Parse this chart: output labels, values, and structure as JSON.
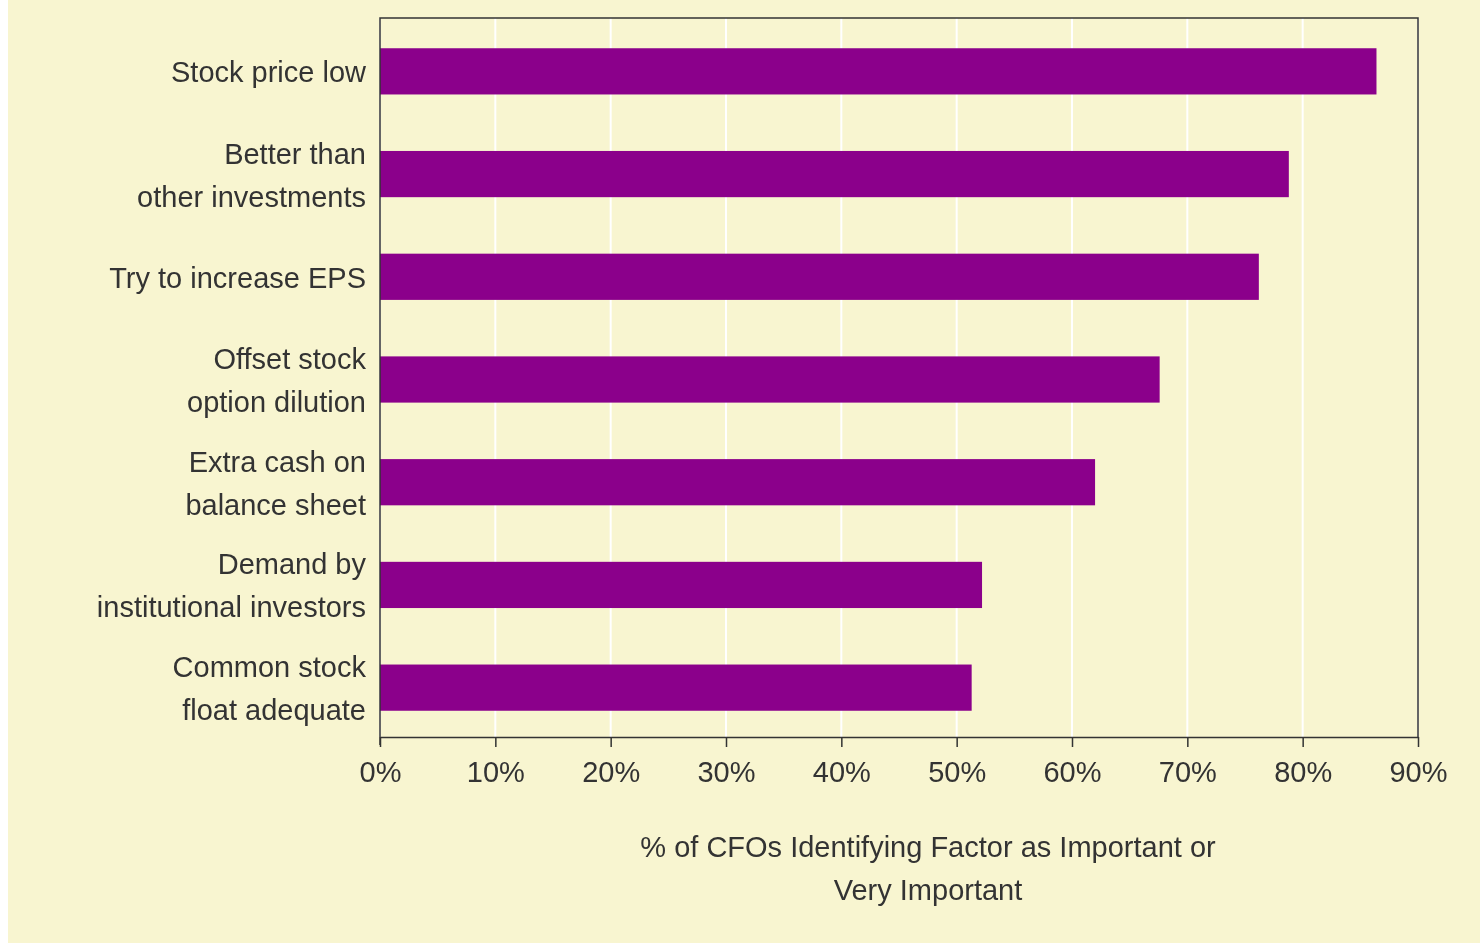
{
  "chart_data": {
    "type": "bar",
    "orientation": "horizontal",
    "categories": [
      "Stock price low",
      "Better than other investments",
      "Try to increase EPS",
      "Offset stock option dilution",
      "Extra cash on balance sheet",
      "Demand by institutional investors",
      "Common stock float adequate"
    ],
    "values": [
      86.4,
      78.8,
      76.2,
      67.6,
      62.0,
      52.2,
      51.3
    ],
    "color": "#8b008b",
    "xlabel": "% of CFOs Identifying Factor as Important or Very Important",
    "xlim": [
      0,
      90
    ],
    "xticks": [
      {
        "value": 0,
        "label": "0%"
      },
      {
        "value": 10,
        "label": "10%"
      },
      {
        "value": 20,
        "label": "20%"
      },
      {
        "value": 30,
        "label": "30%"
      },
      {
        "value": 40,
        "label": "40%"
      },
      {
        "value": 50,
        "label": "50%"
      },
      {
        "value": 60,
        "label": "60%"
      },
      {
        "value": 70,
        "label": "70%"
      },
      {
        "value": 80,
        "label": "80%"
      },
      {
        "value": 90,
        "label": "90%"
      }
    ],
    "grid": "x"
  }
}
